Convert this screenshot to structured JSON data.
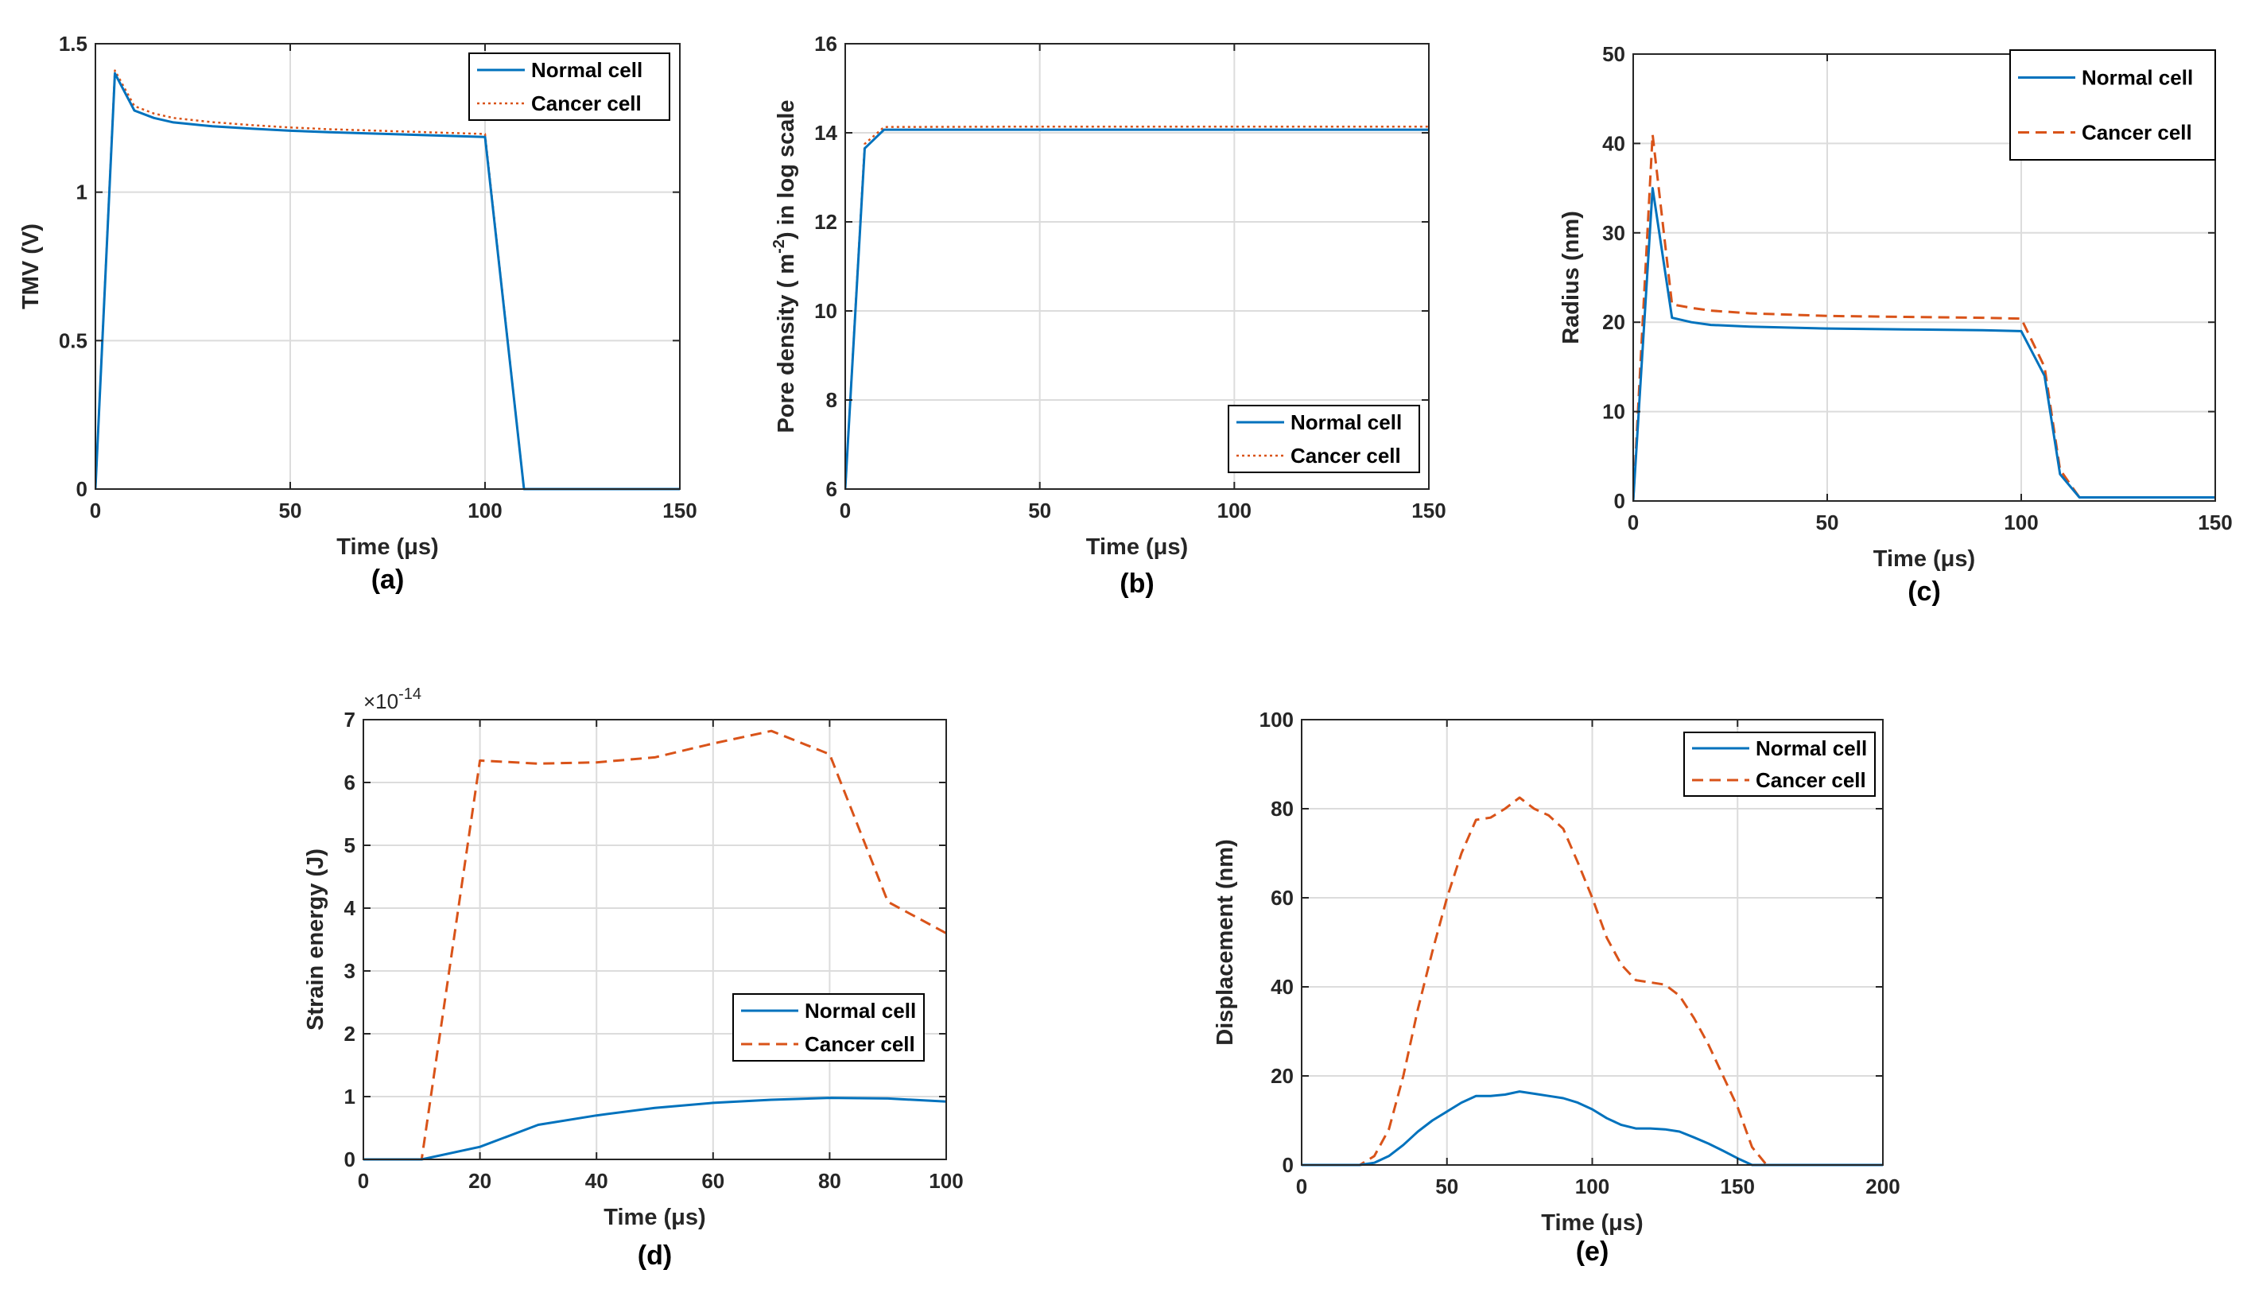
{
  "figure": {
    "colors": {
      "normal": "#0072BD",
      "cancer": "#D95319",
      "grid": "#dcdcdc",
      "axis": "#262626"
    }
  },
  "chart_data": [
    {
      "id": "a",
      "type": "line",
      "caption": "(a)",
      "xlabel": "Time (μs)",
      "ylabel": "TMV (V)",
      "xlim": [
        0,
        150
      ],
      "ylim": [
        0,
        1.5
      ],
      "xticks": [
        0,
        50,
        100,
        150
      ],
      "xtick_labels": [
        "0",
        "50",
        "100",
        "150"
      ],
      "yticks": [
        0,
        0.5,
        1,
        1.5
      ],
      "ytick_labels": [
        "0",
        "0.5",
        "1",
        "1.5"
      ],
      "legend": {
        "position": "top-right",
        "entries": [
          "Normal cell",
          "Cancer cell"
        ]
      },
      "series": [
        {
          "name": "Normal cell",
          "style": "solid",
          "color": "#0072BD",
          "x": [
            0,
            5,
            10,
            15,
            20,
            30,
            40,
            50,
            60,
            70,
            80,
            90,
            100,
            110,
            150
          ],
          "y": [
            0,
            1.4,
            1.275,
            1.25,
            1.235,
            1.222,
            1.214,
            1.207,
            1.202,
            1.198,
            1.194,
            1.19,
            1.186,
            0,
            0
          ]
        },
        {
          "name": "Cancer cell",
          "style": "dotted",
          "color": "#D95319",
          "x": [
            0,
            5,
            10,
            15,
            20,
            30,
            40,
            50,
            60,
            70,
            80,
            90,
            100,
            110,
            150
          ],
          "y": [
            0,
            1.41,
            1.29,
            1.265,
            1.25,
            1.236,
            1.226,
            1.218,
            1.212,
            1.208,
            1.204,
            1.2,
            1.196,
            0,
            0
          ]
        }
      ]
    },
    {
      "id": "b",
      "type": "line",
      "caption": "(b)",
      "xlabel": "Time (μs)",
      "ylabel_parts": [
        "Pore density ( m",
        "-2",
        ") in log scale"
      ],
      "xlim": [
        0,
        150
      ],
      "ylim": [
        6,
        16
      ],
      "xticks": [
        0,
        50,
        100,
        150
      ],
      "xtick_labels": [
        "0",
        "50",
        "100",
        "150"
      ],
      "yticks": [
        6,
        8,
        10,
        12,
        14,
        16
      ],
      "ytick_labels": [
        "6",
        "8",
        "10",
        "12",
        "14",
        "16"
      ],
      "legend": {
        "position": "bottom-right",
        "entries": [
          "Normal cell",
          "Cancer cell"
        ]
      },
      "series": [
        {
          "name": "Normal cell",
          "style": "solid",
          "color": "#0072BD",
          "x": [
            0,
            5,
            10,
            50,
            100,
            150
          ],
          "y": [
            6,
            13.65,
            14.07,
            14.07,
            14.07,
            14.07
          ]
        },
        {
          "name": "Cancer cell",
          "style": "dotted",
          "color": "#D95319",
          "x": [
            0,
            5,
            10,
            50,
            100,
            150
          ],
          "y": [
            6,
            13.75,
            14.13,
            14.14,
            14.14,
            14.14
          ]
        }
      ]
    },
    {
      "id": "c",
      "type": "line",
      "caption": "(c)",
      "xlabel": "Time (μs)",
      "ylabel": "Radius (nm)",
      "xlim": [
        0,
        150
      ],
      "ylim": [
        0,
        50
      ],
      "xticks": [
        0,
        50,
        100,
        150
      ],
      "xtick_labels": [
        "0",
        "50",
        "100",
        "150"
      ],
      "yticks": [
        0,
        10,
        20,
        30,
        40,
        50
      ],
      "ytick_labels": [
        "0",
        "10",
        "20",
        "30",
        "40",
        "50"
      ],
      "legend": {
        "position": "top-right",
        "entries": [
          "Normal cell",
          "Cancer cell"
        ]
      },
      "series": [
        {
          "name": "Normal cell",
          "style": "solid",
          "color": "#0072BD",
          "x": [
            0,
            5,
            10,
            15,
            20,
            30,
            50,
            70,
            90,
            100,
            106,
            110,
            115,
            150
          ],
          "y": [
            0,
            35,
            20.5,
            20,
            19.7,
            19.5,
            19.3,
            19.2,
            19.1,
            19,
            14,
            3,
            0.4,
            0.4
          ]
        },
        {
          "name": "Cancer cell",
          "style": "dashed",
          "color": "#D95319",
          "x": [
            0,
            5,
            10,
            15,
            20,
            30,
            50,
            70,
            90,
            100,
            106,
            110,
            115,
            150
          ],
          "y": [
            0,
            41,
            22,
            21.6,
            21.3,
            21,
            20.7,
            20.6,
            20.5,
            20.4,
            15,
            3.5,
            0.4,
            0.4
          ]
        }
      ]
    },
    {
      "id": "d",
      "type": "line",
      "caption": "(d)",
      "xlabel": "Time (μs)",
      "ylabel": "Strain energy (J)",
      "multiplier": {
        "base": "×10",
        "exponent": "-14"
      },
      "xlim": [
        0,
        100
      ],
      "ylim": [
        0,
        7
      ],
      "xticks": [
        0,
        20,
        40,
        60,
        80,
        100
      ],
      "xtick_labels": [
        "0",
        "20",
        "40",
        "60",
        "80",
        "100"
      ],
      "yticks": [
        0,
        1,
        2,
        3,
        4,
        5,
        6,
        7
      ],
      "ytick_labels": [
        "0",
        "1",
        "2",
        "3",
        "4",
        "5",
        "6",
        "7"
      ],
      "legend": {
        "position": "bottom-right",
        "entries": [
          "Normal cell",
          "Cancer cell"
        ]
      },
      "series": [
        {
          "name": "Normal cell",
          "style": "solid",
          "color": "#0072BD",
          "x": [
            0,
            10,
            20,
            30,
            40,
            50,
            60,
            70,
            80,
            90,
            100
          ],
          "y": [
            0,
            0,
            0.2,
            0.55,
            0.7,
            0.82,
            0.9,
            0.95,
            0.98,
            0.97,
            0.92
          ]
        },
        {
          "name": "Cancer cell",
          "style": "dashed",
          "color": "#D95319",
          "x": [
            0,
            10,
            20,
            30,
            40,
            50,
            60,
            70,
            80,
            90,
            100
          ],
          "y": [
            0,
            0,
            6.35,
            6.3,
            6.32,
            6.4,
            6.62,
            6.82,
            6.45,
            4.1,
            3.6
          ]
        }
      ]
    },
    {
      "id": "e",
      "type": "line",
      "caption": "(e)",
      "xlabel": "Time (μs)",
      "ylabel": "Displacement (nm)",
      "xlim": [
        0,
        200
      ],
      "ylim": [
        0,
        100
      ],
      "xticks": [
        0,
        50,
        100,
        150,
        200
      ],
      "xtick_labels": [
        "0",
        "50",
        "100",
        "150",
        "200"
      ],
      "yticks": [
        0,
        20,
        40,
        60,
        80,
        100
      ],
      "ytick_labels": [
        "0",
        "20",
        "40",
        "60",
        "80",
        "100"
      ],
      "legend": {
        "position": "top-right",
        "entries": [
          "Normal cell",
          "Cancer cell"
        ]
      },
      "series": [
        {
          "name": "Normal cell",
          "style": "solid",
          "color": "#0072BD",
          "x": [
            0,
            20,
            25,
            30,
            35,
            40,
            45,
            50,
            55,
            60,
            65,
            70,
            75,
            80,
            85,
            90,
            95,
            100,
            105,
            110,
            115,
            120,
            125,
            130,
            135,
            140,
            145,
            150,
            155,
            160,
            200
          ],
          "y": [
            0,
            0,
            0.5,
            2,
            4.5,
            7.5,
            10,
            12,
            14,
            15.5,
            15.5,
            15.8,
            16.5,
            16,
            15.5,
            15,
            14,
            12.5,
            10.5,
            9,
            8.2,
            8.2,
            8,
            7.5,
            6.2,
            4.8,
            3.2,
            1.5,
            0,
            0,
            0
          ]
        },
        {
          "name": "Cancer cell",
          "style": "dashed",
          "color": "#D95319",
          "x": [
            0,
            20,
            25,
            30,
            35,
            40,
            45,
            50,
            55,
            60,
            65,
            70,
            75,
            80,
            85,
            90,
            95,
            100,
            105,
            110,
            115,
            120,
            125,
            130,
            135,
            140,
            145,
            150,
            155,
            160,
            200
          ],
          "y": [
            0,
            0,
            2,
            8,
            20,
            35,
            48,
            60,
            70,
            77.5,
            78,
            80,
            82.5,
            80,
            78.5,
            75.5,
            68,
            60,
            51,
            45,
            41.5,
            41,
            40.5,
            38,
            33,
            27,
            20,
            13,
            4,
            0,
            0
          ]
        }
      ]
    }
  ]
}
